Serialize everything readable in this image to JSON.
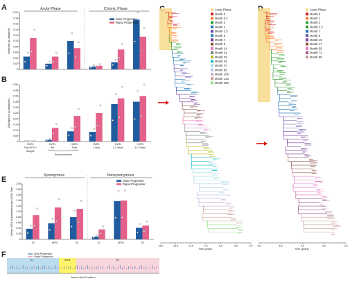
{
  "colors": {
    "slow": "#1f5b9e",
    "rapid": "#e4628a"
  },
  "panels": {
    "A": "A",
    "B": "B",
    "C": "C",
    "D": "D",
    "E": "E",
    "F": "F"
  },
  "chart_data": [
    {
      "id": "A",
      "type": "bar",
      "ylabel": "Diversity (p-distance)",
      "ylim": [
        0,
        0.2
      ],
      "yticks": [
        "0",
        "0.02",
        "0.04",
        "0.06",
        "0.08",
        "0.10",
        "0.12",
        "0.14",
        "0.16",
        "0.18",
        "0.20"
      ],
      "group_labels": [
        "Acute Phase",
        "Chronic Phase"
      ],
      "categories": [
        "First PCR +",
        "Pre",
        "Post",
        "1 Year",
        "2-4 Years",
        "5-7 Years"
      ],
      "series": [
        {
          "name": "Slow Progressor",
          "values": [
            0.045,
            0.02,
            0.1,
            0.01,
            0.025,
            0.175
          ]
        },
        {
          "name": "Rapid Progressor",
          "values": [
            0.11,
            0.045,
            0.075,
            0.013,
            0.07,
            0.115
          ]
        }
      ]
    },
    {
      "id": "B",
      "type": "bar",
      "ylabel": "Divergence (p-distance)",
      "ylim": [
        0,
        0.5
      ],
      "yticks": [
        "0",
        "0.05",
        "0.10",
        "0.15",
        "0.20",
        "0.25",
        "0.30",
        "0.35",
        "0.40",
        "0.45",
        "0.50"
      ],
      "categories": [
        "First PCR + Sample",
        "Pre",
        "Post",
        "1 Year",
        "2-4 Years",
        "5-7 Years"
      ],
      "region_labels": [
        "HVR1",
        "HVR1",
        "HVR1",
        "HVR1",
        "HVR1",
        "HVR1"
      ],
      "seroconversion_label": "Seroconversion",
      "series": [
        {
          "name": "Slow Progressor",
          "values": [
            0,
            0.015,
            0.09,
            0.085,
            0.33,
            0.35
          ]
        },
        {
          "name": "Rapid Progressor",
          "values": [
            0,
            0.12,
            0.225,
            0.25,
            0.38,
            0.4
          ]
        }
      ]
    },
    {
      "id": "E",
      "type": "bar",
      "ylabel": "Mean (S/N) Substitutions per (S/N) Site",
      "ylim": [
        0,
        2.0
      ],
      "yticks": [
        "0",
        "0.20",
        "0.40",
        "0.60",
        "0.80",
        "1.00",
        "1.20",
        "1.40",
        "1.60",
        "1.80",
        "2.00"
      ],
      "group_labels": [
        "Synonymous",
        "Nonsynonymous"
      ],
      "categories": [
        "E1",
        "HRV1",
        "E2",
        "E1",
        "HRV1",
        "E2"
      ],
      "series": [
        {
          "name": "Slow Progressor",
          "values": [
            0.38,
            0.58,
            0.8,
            0.1,
            1.38,
            0.42
          ]
        },
        {
          "name": "Rapid Progressor",
          "values": [
            0.87,
            1.15,
            1.1,
            0.36,
            1.4,
            0.5
          ]
        }
      ]
    },
    {
      "id": "C",
      "type": "tree",
      "xlabel": "Time (years)",
      "xticks": [
        "15.0",
        "12.5",
        "10.0",
        "7.5",
        "5.0",
        "2.5",
        "0.0"
      ],
      "legend": [
        {
          "name": "Acute Phase",
          "color": "#f7e38b"
        },
        {
          "name": "Month 0",
          "color": "#d42020"
        },
        {
          "name": "Month 0.2",
          "color": "#ff7f2a"
        },
        {
          "name": "Month 2",
          "color": "#2ca02c"
        },
        {
          "name": "Month 3",
          "color": "#1f77b4"
        },
        {
          "name": "Month 3.5",
          "color": "#6b4fb0"
        },
        {
          "name": "Month 5",
          "color": "#2a7fbf"
        },
        {
          "name": "Month 7",
          "color": "#7b3f9e"
        },
        {
          "name": "Month 9",
          "color": "#8c564b"
        },
        {
          "name": "Month 14",
          "color": "#e377c2"
        },
        {
          "name": "Month 21",
          "color": "#7f7f7f"
        },
        {
          "name": "Month 23",
          "color": "#bcbd22"
        },
        {
          "name": "Month 36",
          "color": "#17becf"
        },
        {
          "name": "Month 47",
          "color": "#9edae5"
        },
        {
          "name": "Month 60",
          "color": "#aec7e8"
        },
        {
          "name": "Month 106",
          "color": "#c5b0d5"
        },
        {
          "name": "Month 143",
          "color": "#c49c94"
        },
        {
          "name": "Month 168",
          "color": "#98df8a"
        }
      ]
    },
    {
      "id": "D",
      "type": "tree",
      "xlabel": "Time (years)",
      "xticks": [
        "8.0",
        "6.0",
        "4.0",
        "2.0",
        "0.0"
      ],
      "legend": [
        {
          "name": "Acute Phase",
          "color": "#f7e38b"
        },
        {
          "name": "Month 0",
          "color": "#d42020"
        },
        {
          "name": "Month 1",
          "color": "#ff7f2a"
        },
        {
          "name": "Month 2",
          "color": "#2ca02c"
        },
        {
          "name": "Month 3.3",
          "color": "#3a9a3a"
        },
        {
          "name": "Month 7",
          "color": "#1f77b4"
        },
        {
          "name": "Month 9",
          "color": "#6b4fb0"
        },
        {
          "name": "Month 10",
          "color": "#7b3f9e"
        },
        {
          "name": "Month 17",
          "color": "#8c564b"
        },
        {
          "name": "Month 59",
          "color": "#e377c2"
        },
        {
          "name": "Month 71",
          "color": "#a05a8a"
        },
        {
          "name": "Month 88",
          "color": "#c49c94"
        }
      ]
    },
    {
      "id": "F",
      "type": "other",
      "xlabel": "Amino Acid Position",
      "legend": [
        "Slow Progressor",
        "Rapid Progressor"
      ],
      "regions": [
        "E1",
        "HVR1",
        "E2"
      ]
    }
  ]
}
